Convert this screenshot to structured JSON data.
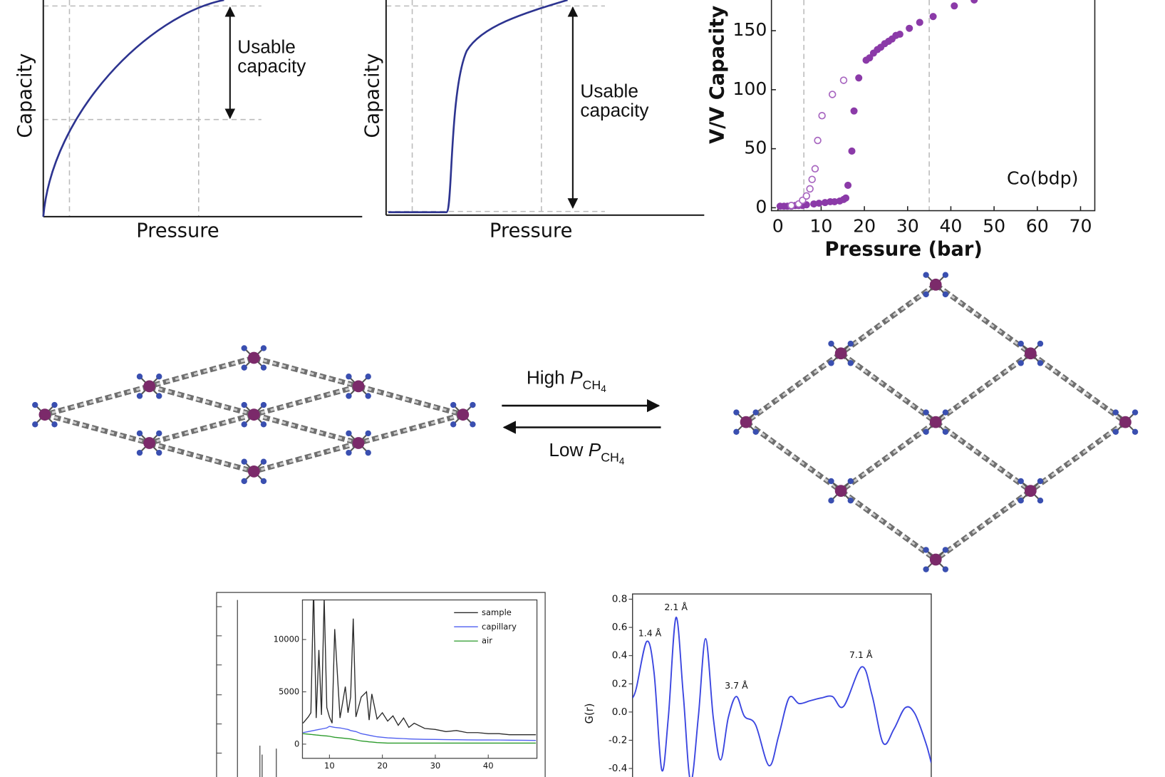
{
  "schematics": [
    {
      "ylabel": "Capacity",
      "xlabel": "Pressure",
      "annotation": "Usable capacity"
    },
    {
      "ylabel": "Capacity",
      "xlabel": "Pressure",
      "annotation": "Usable capacity"
    }
  ],
  "chart_data": [
    {
      "type": "scatter",
      "xlabel": "Pressure (bar)",
      "ylabel": "V/V Capacity",
      "annotation": "Co(bdp)",
      "xlim": [
        -1.5,
        73.3
      ],
      "ylim": [
        -2.5,
        176
      ],
      "xticks": [
        0,
        10,
        20,
        30,
        40,
        50,
        60,
        70
      ],
      "yticks": [
        0,
        50,
        100,
        150
      ],
      "vlines": [
        6,
        35
      ],
      "series": [
        {
          "marker": "filled",
          "color": "#8b3aa8",
          "x": [
            0.5,
            1.4,
            2.2,
            3.1,
            4.0,
            4.8,
            5.7,
            6.6,
            8.3,
            9.5,
            10.9,
            12.1,
            13.1,
            14.3,
            15.2,
            15.7,
            16.2,
            17.1,
            17.6,
            18.7,
            20.4,
            21.2,
            22.1,
            23.0,
            23.8,
            24.7,
            25.6,
            26.4,
            27.3,
            28.2,
            30.4,
            32.8,
            35.9,
            40.8,
            45.4
          ],
          "values": [
            1.3,
            1.3,
            1.3,
            1.3,
            1.9,
            1.9,
            1.9,
            2.5,
            3.2,
            3.8,
            4.4,
            5.1,
            5.1,
            5.7,
            7,
            8.2,
            19,
            48,
            82,
            110,
            125,
            127,
            131,
            134,
            136,
            139,
            141,
            143,
            146,
            147,
            152,
            157,
            162,
            171,
            176
          ]
        },
        {
          "marker": "open",
          "color": "#a866c0",
          "x": [
            3.1,
            4.8,
            5.7,
            6.6,
            7.4,
            7.9,
            8.6,
            9.2,
            10.2,
            12.6,
            15.2
          ],
          "values": [
            1.9,
            3.2,
            6.3,
            10,
            16,
            24,
            33,
            57,
            78,
            96,
            108
          ]
        }
      ]
    },
    {
      "type": "line",
      "legend": "top-right",
      "xlim": [
        4.9,
        49.2
      ],
      "ylim": [
        -1357,
        13786
      ],
      "xticks": [
        10,
        20,
        30,
        40
      ],
      "yticks": [
        0,
        5000,
        10000
      ],
      "x": [
        5,
        6,
        6.5,
        7,
        7.5,
        8,
        8.5,
        9,
        9.5,
        10,
        10.5,
        11,
        12,
        12.5,
        13,
        13.5,
        14,
        14.5,
        15,
        16,
        17,
        17.5,
        18,
        19,
        20,
        21,
        22,
        23,
        24,
        25,
        26,
        28,
        30,
        32,
        34,
        36,
        38,
        40,
        42,
        44,
        46,
        49
      ],
      "series": [
        {
          "name": "sample",
          "color": "#2b2b2b",
          "values": [
            2000,
            2600,
            3000,
            15000,
            2500,
            9000,
            2800,
            14000,
            3500,
            2600,
            2000,
            11000,
            2500,
            4000,
            5500,
            3000,
            4500,
            12000,
            2600,
            4500,
            5000,
            2300,
            4800,
            2400,
            3000,
            2200,
            2700,
            1800,
            2500,
            1600,
            2000,
            1500,
            1400,
            1200,
            1300,
            1100,
            1100,
            1000,
            1000,
            900,
            900,
            900
          ]
        },
        {
          "name": "capillary",
          "color": "#4f5ff0",
          "values": [
            1100,
            1200,
            1250,
            1300,
            1350,
            1400,
            1450,
            1500,
            1550,
            1700,
            1650,
            1600,
            1550,
            1500,
            1450,
            1400,
            1300,
            1250,
            1200,
            1000,
            900,
            850,
            800,
            700,
            650,
            600,
            580,
            550,
            530,
            500,
            480,
            460,
            450,
            430,
            420,
            410,
            400,
            400,
            390,
            380,
            370,
            360
          ]
        },
        {
          "name": "air",
          "color": "#2a9a2a",
          "values": [
            1000,
            950,
            930,
            900,
            870,
            850,
            820,
            800,
            780,
            750,
            700,
            650,
            600,
            580,
            550,
            520,
            500,
            450,
            400,
            300,
            250,
            220,
            200,
            150,
            120,
            100,
            100,
            100,
            100,
            100,
            100,
            100,
            100,
            100,
            100,
            100,
            100,
            100,
            100,
            100,
            100,
            100
          ]
        }
      ]
    },
    {
      "type": "line",
      "smooth": true,
      "ylabel": "G(r)",
      "xlim": [
        1.03,
        8.8
      ],
      "ylim": [
        -0.487,
        0.837
      ],
      "yticks": [
        0.8,
        0.6,
        0.4,
        0.2,
        {
          "value": 0,
          "label": "0.0"
        },
        -0.2,
        -0.4
      ],
      "x": [
        1.03,
        1.13,
        1.4,
        1.59,
        1.79,
        1.96,
        2.16,
        2.35,
        2.54,
        2.74,
        2.93,
        3.13,
        3.32,
        3.52,
        3.73,
        3.94,
        4.23,
        4.58,
        4.83,
        5.1,
        5.36,
        5.65,
        5.94,
        6.23,
        6.52,
        6.99,
        7.26,
        7.55,
        7.83,
        8.12,
        8.37,
        8.66,
        8.8
      ],
      "series": [
        {
          "color": "#3b46e0",
          "values": [
            0.1,
            0.17,
            0.5,
            0.28,
            -0.41,
            -0.04,
            0.67,
            0.12,
            -0.49,
            -0.04,
            0.52,
            -0.04,
            -0.34,
            -0.04,
            0.11,
            -0.03,
            -0.09,
            -0.38,
            -0.17,
            0.1,
            0.06,
            0.08,
            0.1,
            0.11,
            0.04,
            0.32,
            0.12,
            -0.22,
            -0.12,
            0.03,
            -0.01,
            -0.22,
            -0.36
          ]
        }
      ],
      "annotations": [
        {
          "text": "1.4 Å",
          "x": 1.48,
          "y": 0.556
        },
        {
          "text": "2.1 Å",
          "x": 2.16,
          "y": 0.74
        },
        {
          "text": "3.7 Å",
          "x": 3.73,
          "y": 0.185
        },
        {
          "text": "7.1 Å",
          "x": 6.97,
          "y": 0.4
        }
      ]
    }
  ],
  "diagram": {
    "forward": {
      "text": "High",
      "variable": "P",
      "subscript": "CH",
      "index": "4"
    },
    "reverse": {
      "text": "Low",
      "variable": "P",
      "subscript": "CH",
      "index": "4"
    }
  }
}
